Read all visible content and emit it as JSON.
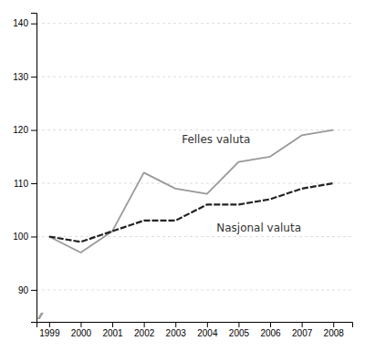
{
  "chart_data": {
    "type": "line",
    "x": [
      1999,
      2000,
      2001,
      2002,
      2003,
      2004,
      2005,
      2006,
      2007,
      2008
    ],
    "series": [
      {
        "color": "#999999",
        "line_style": "solid",
        "values": [
          100,
          97,
          101,
          112,
          109,
          108,
          114,
          115,
          119,
          120
        ]
      },
      {
        "color": "#222222",
        "line_style": "dashed",
        "values": [
          100,
          99,
          101,
          103,
          103,
          106,
          106,
          107,
          109,
          110
        ]
      }
    ],
    "annotations": [
      {
        "text": "Felles valuta",
        "x": 2003.2,
        "y": 117.5
      },
      {
        "text": "Nasjonal valuta",
        "x": 2004.3,
        "y": 102.5
      },
      {
        "text": "⁄⁄",
        "x": 1998.72,
        "y": 84.5
      }
    ],
    "xlim": [
      1998.6,
      2008.6
    ],
    "xticks": [
      1999,
      2000,
      2001,
      2002,
      2003,
      2004,
      2005,
      2006,
      2007,
      2008
    ],
    "ylim": [
      84,
      142
    ],
    "yticks": [
      90,
      100,
      110,
      120,
      130,
      140
    ],
    "grid": true
  }
}
